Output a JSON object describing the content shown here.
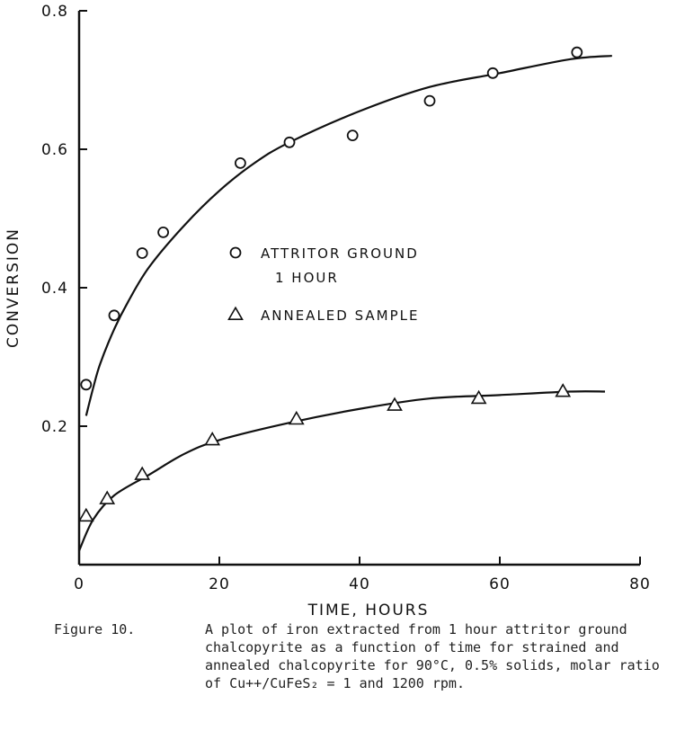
{
  "chart_data": {
    "type": "scatter",
    "title": "",
    "xlabel": "TIME, HOURS",
    "ylabel": "CONVERSION",
    "xlim": [
      0,
      80
    ],
    "ylim": [
      0,
      0.8
    ],
    "xticks": [
      "0",
      "20",
      "40",
      "60",
      "80"
    ],
    "yticks": [
      "0.2",
      "0.4",
      "0.6",
      "0.8"
    ],
    "grid": false,
    "legend_position": "center",
    "series": [
      {
        "name": "ATTRITOR GROUND 1 HOUR",
        "legend_lines": [
          "ATTRITOR GROUND",
          "1 HOUR"
        ],
        "marker": "circle",
        "x": [
          1,
          5,
          9,
          12,
          23,
          30,
          39,
          50,
          59,
          71
        ],
        "y": [
          0.26,
          0.36,
          0.45,
          0.48,
          0.58,
          0.61,
          0.62,
          0.67,
          0.71,
          0.74
        ],
        "curve_x": [
          1,
          2,
          3,
          5,
          7,
          10,
          15,
          20,
          25,
          30,
          40,
          50,
          60,
          70,
          76
        ],
        "curve_y": [
          0.215,
          0.255,
          0.29,
          0.34,
          0.38,
          0.43,
          0.49,
          0.54,
          0.58,
          0.61,
          0.655,
          0.69,
          0.71,
          0.73,
          0.735
        ]
      },
      {
        "name": "ANNEALED SAMPLE",
        "legend_lines": [
          "ANNEALED SAMPLE"
        ],
        "marker": "triangle",
        "x": [
          1,
          4,
          9,
          19,
          31,
          45,
          57,
          69
        ],
        "y": [
          0.07,
          0.095,
          0.13,
          0.18,
          0.21,
          0.23,
          0.24,
          0.25
        ],
        "curve_x": [
          0,
          2,
          5,
          10,
          15,
          20,
          30,
          40,
          50,
          60,
          70,
          75
        ],
        "curve_y": [
          0.02,
          0.065,
          0.1,
          0.13,
          0.16,
          0.18,
          0.205,
          0.225,
          0.24,
          0.245,
          0.25,
          0.25
        ]
      }
    ]
  },
  "caption": {
    "label": "Figure 10.",
    "text": "A plot of iron extracted from 1 hour attritor ground chalcopyrite as a function of time for strained and annealed chalcopyrite for 90°C, 0.5% solids, molar ratio of Cu++/CuFeS₂ = 1 and 1200 rpm."
  }
}
